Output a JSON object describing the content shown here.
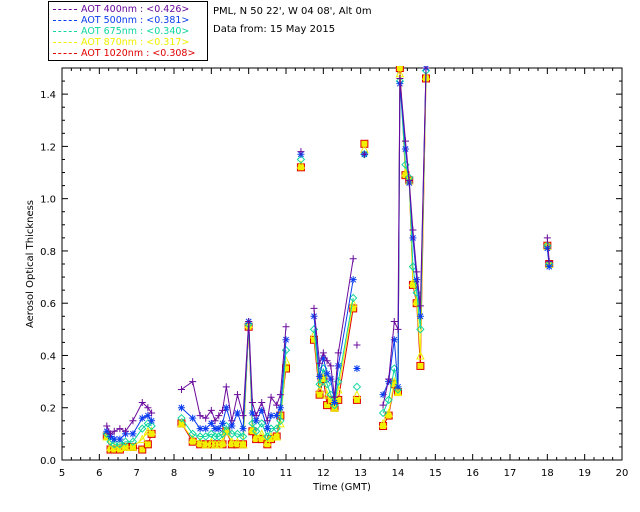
{
  "header": {
    "site": "PML, N 50 22', W 04 08', Alt 0m",
    "date_line": "Data from: 15 May 2015"
  },
  "chart_data": {
    "type": "line",
    "xlabel": "Time (GMT)",
    "ylabel": "Aerosol Optical Thickness",
    "xlim": [
      5,
      20
    ],
    "ylim": [
      0,
      1.5
    ],
    "xticks": [
      5,
      6,
      7,
      8,
      9,
      10,
      11,
      12,
      13,
      14,
      15,
      16,
      17,
      18,
      19,
      20
    ],
    "yticks": [
      0.0,
      0.2,
      0.4,
      0.6,
      0.8,
      1.0,
      1.2,
      1.4
    ],
    "grid": false,
    "legend_position": "top-left outside",
    "x": [
      6.2,
      6.3,
      6.4,
      6.55,
      6.7,
      6.9,
      7.15,
      7.3,
      7.4,
      8.2,
      8.5,
      8.7,
      8.85,
      9.0,
      9.1,
      9.2,
      9.3,
      9.4,
      9.55,
      9.7,
      9.85,
      10.0,
      10.1,
      10.2,
      10.35,
      10.5,
      10.6,
      10.75,
      10.85,
      11.0,
      11.4,
      11.75,
      11.9,
      12.0,
      12.1,
      12.2,
      12.3,
      12.4,
      12.8,
      12.9,
      13.1,
      13.6,
      13.75,
      13.9,
      14.0,
      14.05,
      14.2,
      14.3,
      14.4,
      14.5,
      14.6,
      14.75,
      18.0,
      18.05
    ],
    "gaps_after_index": [
      8,
      29,
      30,
      38,
      39,
      40,
      51
    ],
    "series": [
      {
        "name": "AOT  400nm : <0.426>",
        "color": "#6a0a9c",
        "marker": "plus",
        "values": [
          0.13,
          0.1,
          0.11,
          0.12,
          0.11,
          0.15,
          0.22,
          0.2,
          0.18,
          0.27,
          0.3,
          0.17,
          0.16,
          0.19,
          0.15,
          0.17,
          0.19,
          0.28,
          0.15,
          0.25,
          0.17,
          0.53,
          0.22,
          0.17,
          0.22,
          0.15,
          0.24,
          0.21,
          0.25,
          0.51,
          1.18,
          0.58,
          0.37,
          0.41,
          0.38,
          0.36,
          0.24,
          0.41,
          0.77,
          0.44,
          1.17,
          0.21,
          0.31,
          0.53,
          0.5,
          1.46,
          1.22,
          1.07,
          0.88,
          0.72,
          0.59,
          1.52,
          0.85,
          0.76
        ]
      },
      {
        "name": "AOT  500nm : <0.381>",
        "color": "#0a3cf0",
        "marker": "star",
        "values": [
          0.11,
          0.09,
          0.08,
          0.08,
          0.1,
          0.1,
          0.16,
          0.17,
          0.15,
          0.2,
          0.16,
          0.12,
          0.12,
          0.14,
          0.12,
          0.12,
          0.14,
          0.2,
          0.13,
          0.18,
          0.12,
          0.53,
          0.18,
          0.15,
          0.19,
          0.12,
          0.17,
          0.17,
          0.2,
          0.46,
          1.17,
          0.55,
          0.32,
          0.39,
          0.33,
          0.31,
          0.22,
          0.36,
          0.69,
          0.35,
          1.17,
          0.25,
          0.3,
          0.46,
          0.28,
          1.44,
          1.19,
          1.06,
          0.85,
          0.69,
          0.55,
          1.51,
          0.81,
          0.74
        ]
      },
      {
        "name": "AOT  675nm : <0.340>",
        "color": "#10d6a0",
        "marker": "diamond",
        "values": [
          0.1,
          0.07,
          0.06,
          0.06,
          0.07,
          0.07,
          0.12,
          0.14,
          0.13,
          0.16,
          0.1,
          0.09,
          0.09,
          0.1,
          0.09,
          0.09,
          0.1,
          0.13,
          0.1,
          0.1,
          0.09,
          0.52,
          0.14,
          0.11,
          0.14,
          0.09,
          0.12,
          0.12,
          0.15,
          0.42,
          1.15,
          0.5,
          0.29,
          0.35,
          0.29,
          0.25,
          0.21,
          0.3,
          0.62,
          0.28,
          1.17,
          0.18,
          0.23,
          0.35,
          0.27,
          1.45,
          1.13,
          1.08,
          0.74,
          0.64,
          0.5,
          1.49,
          0.82,
          0.75
        ]
      },
      {
        "name": "AOT  870nm : <0.317>",
        "color": "#f0f000",
        "marker": "triangle",
        "values": [
          0.09,
          0.05,
          0.05,
          0.05,
          0.05,
          0.05,
          0.08,
          0.11,
          0.11,
          0.14,
          0.08,
          0.07,
          0.06,
          0.07,
          0.06,
          0.06,
          0.07,
          0.11,
          0.07,
          0.07,
          0.06,
          0.52,
          0.12,
          0.09,
          0.1,
          0.07,
          0.09,
          0.09,
          0.14,
          0.38,
          1.13,
          0.48,
          0.27,
          0.33,
          0.25,
          0.22,
          0.2,
          0.27,
          0.6,
          0.25,
          1.19,
          0.14,
          0.18,
          0.3,
          0.26,
          1.48,
          1.1,
          1.07,
          0.68,
          0.61,
          0.4,
          1.47,
          0.82,
          0.75
        ]
      },
      {
        "name": "AOT 1020nm : <0.308>",
        "color": "#e00000",
        "marker": "square",
        "values": [
          0.09,
          0.04,
          0.04,
          0.04,
          0.05,
          0.05,
          0.04,
          0.06,
          0.1,
          0.14,
          0.07,
          0.06,
          0.06,
          0.06,
          0.06,
          0.06,
          0.06,
          0.11,
          0.06,
          0.06,
          0.06,
          0.51,
          0.11,
          0.08,
          0.08,
          0.06,
          0.08,
          0.09,
          0.17,
          0.35,
          1.12,
          0.46,
          0.25,
          0.31,
          0.21,
          0.23,
          0.2,
          0.23,
          0.58,
          0.23,
          1.21,
          0.13,
          0.17,
          0.29,
          0.26,
          1.5,
          1.09,
          1.07,
          0.67,
          0.6,
          0.36,
          1.46,
          0.82,
          0.75
        ]
      }
    ]
  },
  "legend_colors": [
    "#6a0a9c",
    "#0a3cf0",
    "#10d6a0",
    "#f0f000",
    "#e00000"
  ]
}
